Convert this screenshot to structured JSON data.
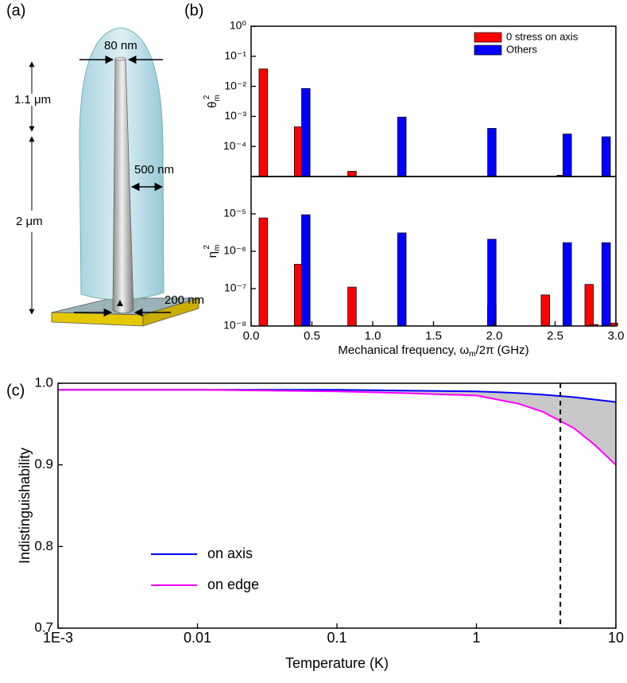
{
  "panel_labels": [
    "(a)",
    "(b)",
    "(c)"
  ],
  "diagram": {
    "top_width": "80 nm",
    "top_length": "1.1 μm",
    "length": "2 μm",
    "diameter": "500 nm",
    "base_width": "200 nm"
  },
  "chart_data": [
    {
      "type": "bar",
      "ylabel": {
        "text": "θ",
        "sup": "2",
        "sub": "m"
      },
      "ylog": true,
      "ylim": [
        1e-05,
        1
      ],
      "yticks": [
        {
          "value": 1,
          "label": "10⁰"
        },
        {
          "value": 0.1,
          "label": "10⁻¹"
        },
        {
          "value": 0.01,
          "label": "10⁻²"
        },
        {
          "value": 0.001,
          "label": "10⁻³"
        },
        {
          "value": 0.0001,
          "label": "10⁻⁴"
        }
      ],
      "xlim": [
        0,
        3
      ],
      "legend": "upper right",
      "series": [
        {
          "name": "0 stress on axis",
          "color": "#ff0000",
          "x": [
            0.1,
            0.39,
            0.83,
            2.55
          ],
          "values": [
            0.038,
            0.00045,
            1.5e-05,
            1.1e-05
          ]
        },
        {
          "name": "Others",
          "color": "#0000ff",
          "x": [
            0.45,
            1.24,
            1.98,
            2.6,
            2.92
          ],
          "values": [
            0.0085,
            0.00095,
            0.0004,
            0.00026,
            0.00021
          ]
        }
      ]
    },
    {
      "type": "bar",
      "ylabel": {
        "text": "η",
        "sup": "2",
        "sub": "m"
      },
      "ylog": true,
      "ylim": [
        1e-08,
        0.0001
      ],
      "yticks": [
        {
          "value": 1e-05,
          "label": "10⁻⁵"
        },
        {
          "value": 1e-06,
          "label": "10⁻⁶"
        },
        {
          "value": 1e-07,
          "label": "10⁻⁷"
        },
        {
          "value": 1e-08,
          "label": "10⁻⁸"
        }
      ],
      "xlim": [
        0,
        3
      ],
      "xticks": [
        {
          "value": 0,
          "label": "0.0"
        },
        0.5,
        {
          "value": 1,
          "label": "1.0"
        },
        1.5,
        {
          "value": 2,
          "label": "2.0"
        },
        2.5,
        {
          "value": 3,
          "label": "3.0"
        }
      ],
      "xlabel": {
        "text": "Mechanical frequency, ω",
        "sub": "m",
        "rest": "/2π (GHz)"
      },
      "series": [
        {
          "name": "0 stress on axis",
          "color": "#ff0000",
          "x": [
            0.1,
            0.39,
            0.83,
            1.98,
            2.42,
            2.78,
            2.82,
            2.98
          ],
          "values": [
            7.8e-06,
            4.5e-07,
            1.1e-07,
            3.5e-08,
            6.8e-08,
            1.3e-07,
            1.1e-08,
            1.2e-08
          ]
        },
        {
          "name": "Others",
          "color": "#0000ff",
          "x": [
            0.45,
            1.24,
            1.98,
            2.6,
            2.92
          ],
          "values": [
            9.5e-06,
            3.1e-06,
            2.1e-06,
            1.7e-06,
            1.7e-06
          ]
        }
      ]
    },
    {
      "type": "line",
      "xlabel": "Temperature (K)",
      "ylabel": "Indistinguishability",
      "xlog": true,
      "xlim": [
        0.001,
        10
      ],
      "ylim": [
        0.7,
        1.0
      ],
      "xticks": [
        {
          "value": 0.001,
          "label": "1E-3"
        },
        0.01,
        0.1,
        1,
        10
      ],
      "yticks": [
        0.7,
        0.8,
        0.9,
        {
          "value": 1.0,
          "label": "1.0"
        }
      ],
      "vline": 4,
      "fill_between": "#c8c8c8",
      "legend": "lower left",
      "x": [
        0.001,
        0.01,
        0.1,
        0.3,
        1,
        2,
        3,
        5,
        7,
        10
      ],
      "series": [
        {
          "name": "on axis",
          "color": "#0000ff",
          "values": [
            0.992,
            0.992,
            0.992,
            0.991,
            0.99,
            0.988,
            0.986,
            0.983,
            0.98,
            0.977
          ]
        },
        {
          "name": "on edge",
          "color": "#ff00ff",
          "values": [
            0.992,
            0.992,
            0.99,
            0.988,
            0.985,
            0.975,
            0.965,
            0.945,
            0.925,
            0.9
          ]
        }
      ]
    }
  ]
}
